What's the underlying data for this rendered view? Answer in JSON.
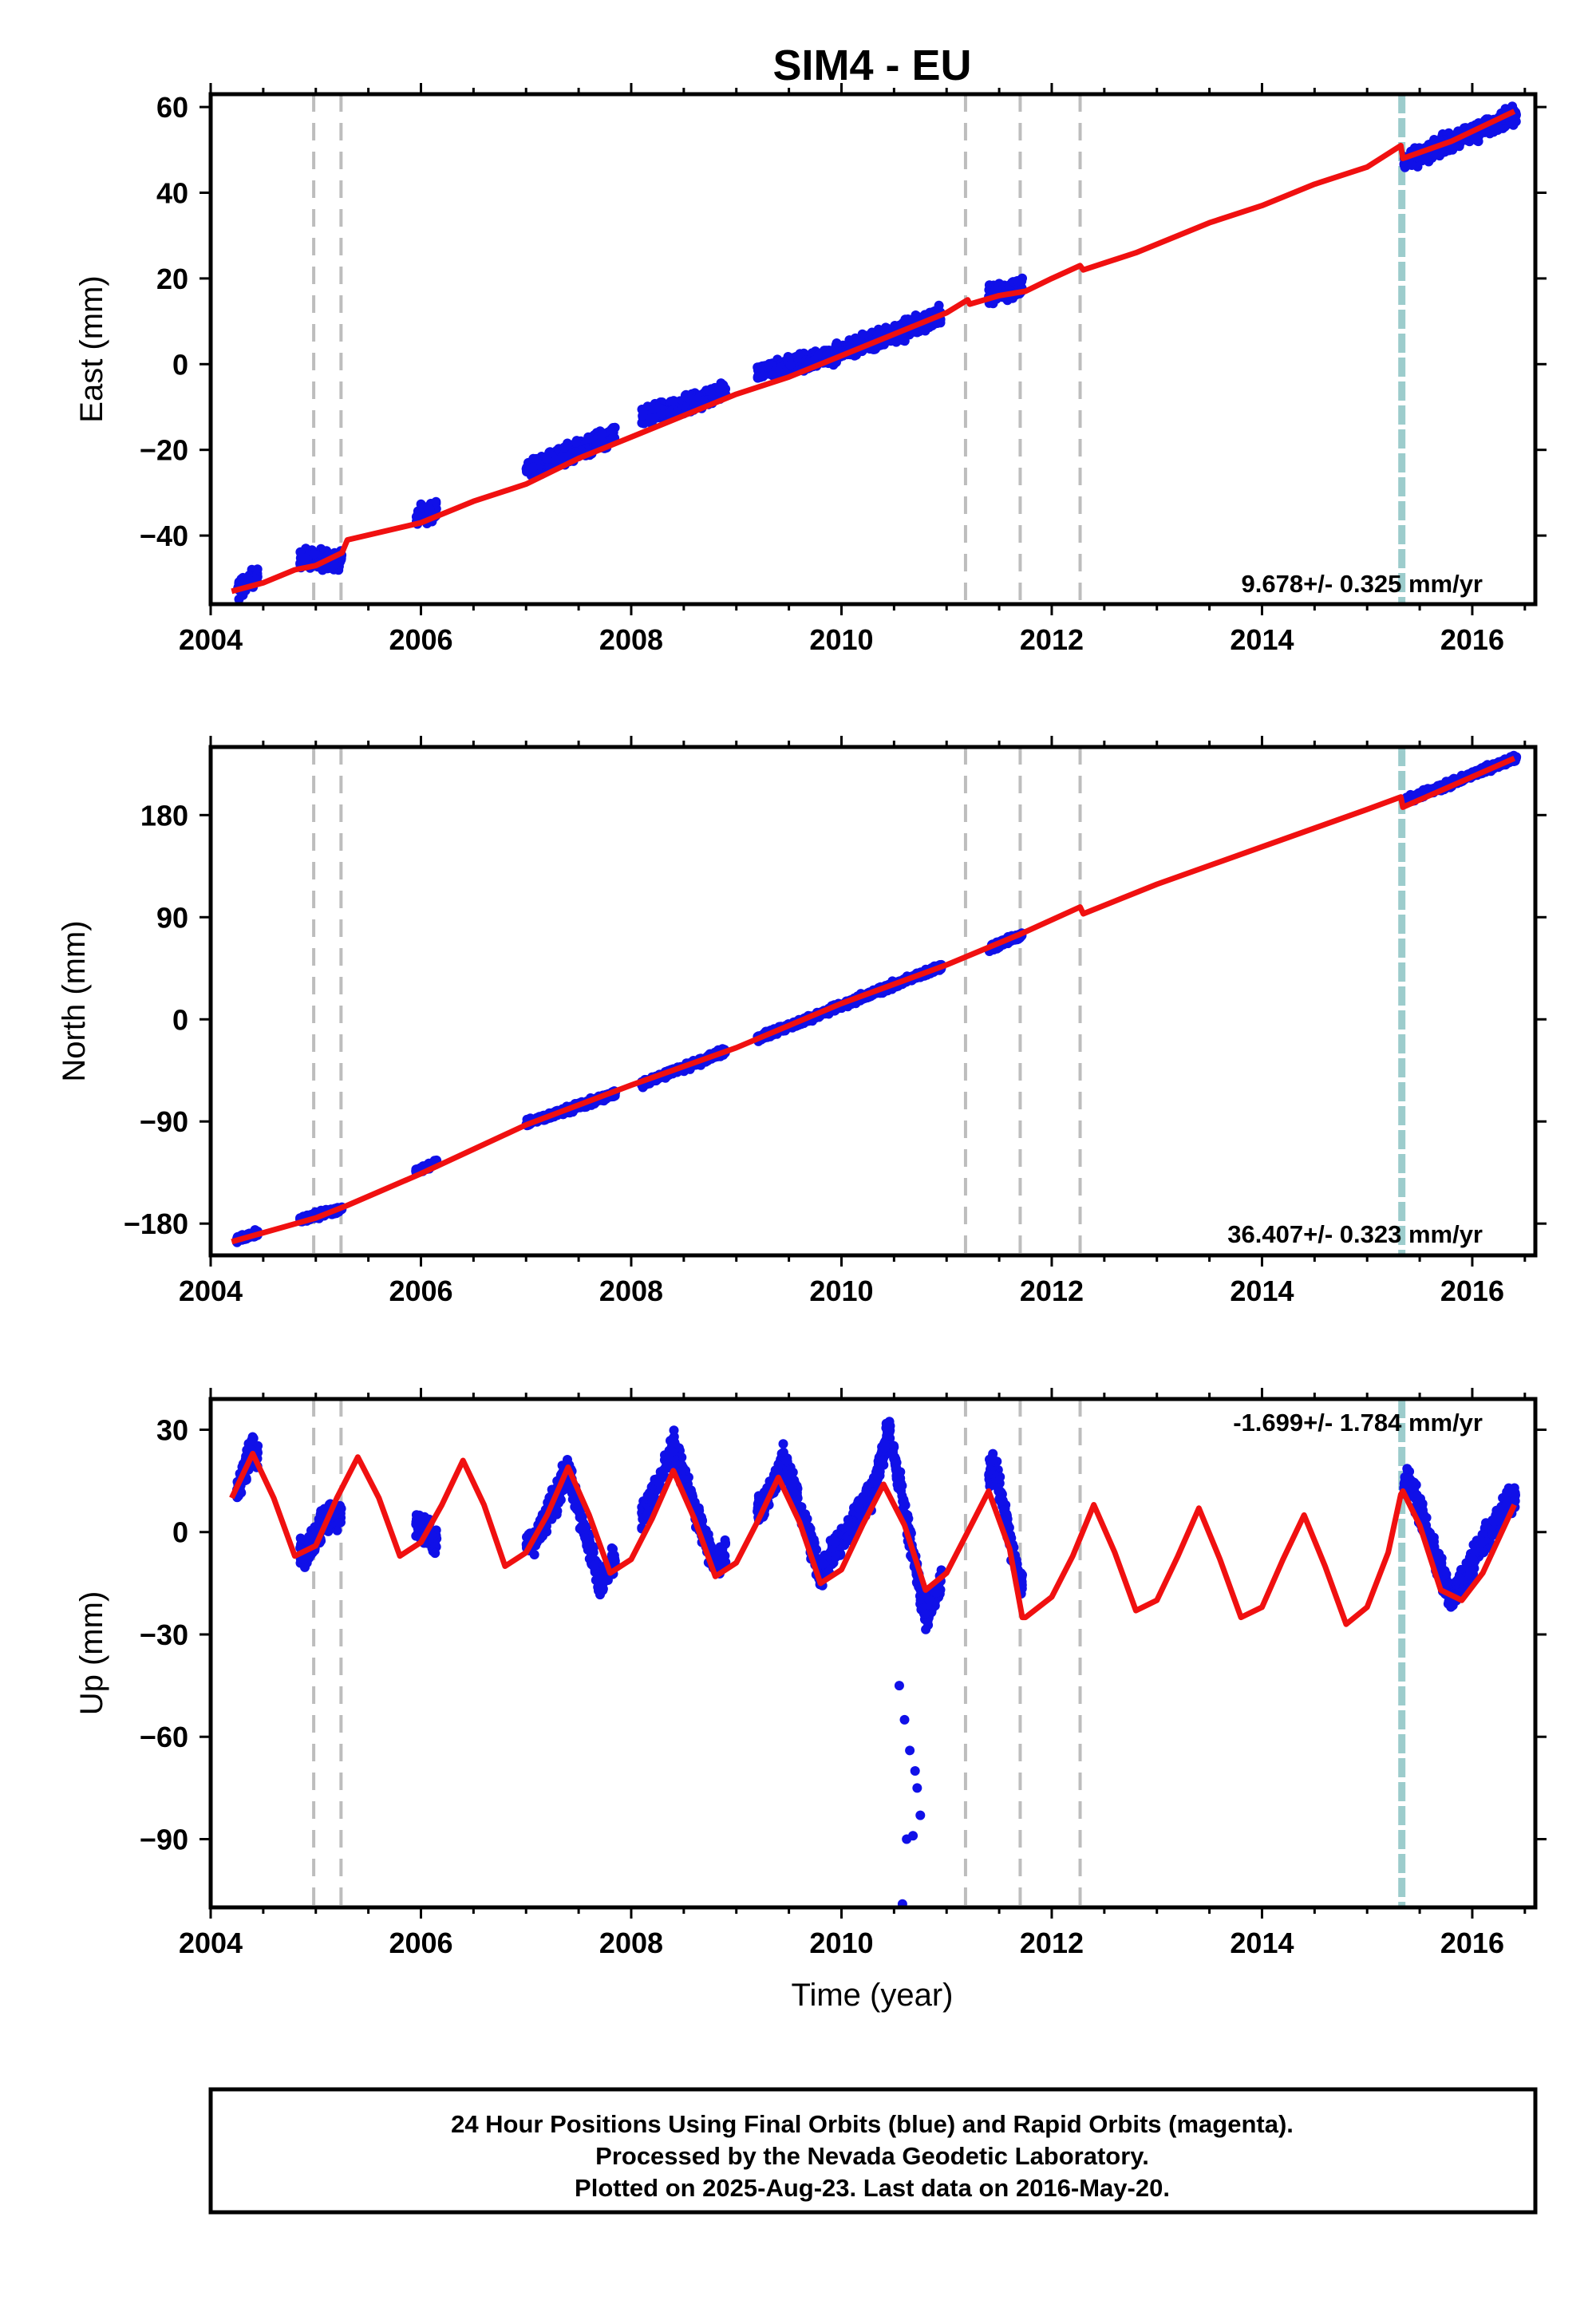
{
  "title": "SIM4 - EU",
  "colors": {
    "data_points": "#1010e8",
    "model_line": "#f01010",
    "equipment_lines": "#bdbdbd",
    "event_line": "#9ccccc",
    "frame": "#000000"
  },
  "chart_data": [
    {
      "type": "scatter",
      "component": "east",
      "ylabel": "East (mm)",
      "xlabel": "",
      "xlim": [
        2004.0,
        2016.6
      ],
      "ylim": [
        -56,
        63
      ],
      "yticks": [
        -40,
        -20,
        0,
        20,
        40,
        60
      ],
      "xticks": [
        2004,
        2006,
        2008,
        2010,
        2012,
        2014,
        2016
      ],
      "rate_text": "9.678+/- 0.325 mm/yr",
      "data_spans": [
        [
          2004.25,
          2004.45
        ],
        [
          2004.85,
          2005.25
        ],
        [
          2005.95,
          2006.15
        ],
        [
          2007.0,
          2007.85
        ],
        [
          2008.1,
          2008.9
        ],
        [
          2009.2,
          2010.05
        ],
        [
          2010.05,
          2010.95
        ],
        [
          2011.4,
          2011.72
        ],
        [
          2015.35,
          2016.42
        ]
      ],
      "series": [
        {
          "role": "points",
          "x": [
            2004.25,
            2004.4,
            2004.9,
            2005.2,
            2006.0,
            2006.15,
            2007.0,
            2007.4,
            2007.8,
            2008.1,
            2008.5,
            2008.9,
            2009.2,
            2009.6,
            2010.0,
            2010.1,
            2010.5,
            2010.9,
            2011.4,
            2011.7,
            2015.35,
            2015.8,
            2016.4
          ],
          "y": [
            -53,
            -50,
            -45,
            -46,
            -35,
            -34,
            -25,
            -21,
            -17,
            -12,
            -10,
            -6,
            -2,
            0,
            3,
            4,
            7,
            11,
            16,
            18,
            47,
            52,
            58
          ]
        },
        {
          "role": "model",
          "x": [
            2004.2,
            2004.5,
            2004.8,
            2005.0,
            2005.25,
            2005.3,
            2006.0,
            2006.5,
            2007.0,
            2007.5,
            2008.0,
            2008.5,
            2009.0,
            2009.5,
            2010.0,
            2010.5,
            2011.0,
            2011.2,
            2011.22,
            2011.5,
            2011.75,
            2012.0,
            2012.27,
            2012.3,
            2012.8,
            2013.5,
            2014.0,
            2014.5,
            2015.0,
            2015.32,
            2015.34,
            2015.8,
            2016.4
          ],
          "y": [
            -53,
            -51,
            -48,
            -47,
            -44,
            -41,
            -37,
            -32,
            -28,
            -22,
            -17,
            -12,
            -7,
            -3,
            2,
            7,
            12,
            15,
            14,
            16,
            17,
            20,
            23,
            22,
            26,
            33,
            37,
            42,
            46,
            51,
            48,
            52,
            59
          ]
        }
      ]
    },
    {
      "type": "scatter",
      "component": "north",
      "ylabel": "North (mm)",
      "xlabel": "",
      "xlim": [
        2004.0,
        2016.6
      ],
      "ylim": [
        -208,
        240
      ],
      "yticks": [
        -180,
        -90,
        0,
        90,
        180
      ],
      "xticks": [
        2004,
        2006,
        2008,
        2010,
        2012,
        2014,
        2016
      ],
      "rate_text": "36.407+/- 0.323 mm/yr",
      "data_spans": [
        [
          2004.25,
          2004.45
        ],
        [
          2004.85,
          2005.25
        ],
        [
          2005.95,
          2006.15
        ],
        [
          2007.0,
          2007.85
        ],
        [
          2008.1,
          2008.9
        ],
        [
          2009.2,
          2010.05
        ],
        [
          2010.05,
          2010.95
        ],
        [
          2011.4,
          2011.72
        ],
        [
          2015.35,
          2016.42
        ]
      ],
      "series": [
        {
          "role": "points",
          "x": [
            2004.25,
            2004.45,
            2005.0,
            2005.2,
            2006.05,
            2007.0,
            2007.8,
            2008.1,
            2008.9,
            2009.2,
            2010.0,
            2010.9,
            2011.4,
            2011.7,
            2015.35,
            2016.4
          ],
          "y": [
            -194,
            -188,
            -173,
            -168,
            -130,
            -92,
            -67,
            -57,
            -28,
            -17,
            12,
            45,
            62,
            74,
            192,
            230
          ]
        },
        {
          "role": "model",
          "x": [
            2004.2,
            2005.0,
            2005.3,
            2006.0,
            2007.0,
            2008.0,
            2009.0,
            2010.0,
            2011.0,
            2011.7,
            2012.27,
            2012.3,
            2013.0,
            2014.0,
            2015.0,
            2015.32,
            2015.34,
            2016.4
          ],
          "y": [
            -196,
            -175,
            -164,
            -136,
            -93,
            -58,
            -25,
            14,
            48,
            75,
            99,
            93,
            119,
            152,
            185,
            196,
            187,
            230
          ]
        }
      ]
    },
    {
      "type": "scatter",
      "component": "up",
      "ylabel": "Up (mm)",
      "xlabel": "Time (year)",
      "xlim": [
        2004.0,
        2016.6
      ],
      "ylim": [
        -110,
        39
      ],
      "yticks": [
        -90,
        -60,
        -30,
        0,
        30
      ],
      "xticks": [
        2004,
        2006,
        2008,
        2010,
        2012,
        2014,
        2016
      ],
      "rate_text": "-1.699+/- 1.784 mm/yr",
      "data_spans": [
        [
          2004.25,
          2004.45
        ],
        [
          2004.85,
          2005.25
        ],
        [
          2005.95,
          2006.15
        ],
        [
          2007.0,
          2007.85
        ],
        [
          2008.1,
          2008.9
        ],
        [
          2009.2,
          2010.05
        ],
        [
          2010.05,
          2010.95
        ],
        [
          2011.4,
          2011.72
        ],
        [
          2015.35,
          2016.42
        ]
      ],
      "outliers": {
        "x": [
          2010.55,
          2010.6,
          2010.65,
          2010.7,
          2010.75,
          2010.62,
          2010.68,
          2010.72,
          2010.58
        ],
        "y": [
          -45,
          -55,
          -64,
          -70,
          -83,
          -90,
          -89,
          -75,
          -109
        ]
      },
      "series": [
        {
          "role": "points",
          "x": [
            2004.25,
            2004.4,
            2004.9,
            2005.1,
            2006.0,
            2006.15,
            2007.1,
            2007.4,
            2007.7,
            2008.2,
            2008.4,
            2008.8,
            2009.3,
            2009.45,
            2009.8,
            2010.3,
            2010.45,
            2010.8,
            2011.45,
            2011.7,
            2015.4,
            2015.8,
            2016.35
          ],
          "y": [
            12,
            25,
            -8,
            5,
            2,
            -3,
            -2,
            18,
            -15,
            10,
            25,
            -10,
            10,
            22,
            -12,
            12,
            30,
            -25,
            20,
            -15,
            15,
            -20,
            10
          ]
        },
        {
          "role": "model",
          "x": [
            2004.2,
            2004.4,
            2004.6,
            2004.8,
            2005.0,
            2005.2,
            2005.4,
            2005.6,
            2005.8,
            2006.0,
            2006.2,
            2006.4,
            2006.6,
            2006.8,
            2007.0,
            2007.2,
            2007.4,
            2007.6,
            2007.8,
            2008.0,
            2008.2,
            2008.4,
            2008.6,
            2008.8,
            2009.0,
            2009.2,
            2009.4,
            2009.6,
            2009.8,
            2010.0,
            2010.2,
            2010.4,
            2010.6,
            2010.8,
            2011.0,
            2011.2,
            2011.4,
            2011.6,
            2011.72,
            2011.75,
            2012.0,
            2012.2,
            2012.4,
            2012.6,
            2012.8,
            2013.0,
            2013.2,
            2013.4,
            2013.6,
            2013.8,
            2014.0,
            2014.2,
            2014.4,
            2014.6,
            2014.8,
            2015.0,
            2015.2,
            2015.32,
            2015.34,
            2015.5,
            2015.7,
            2015.9,
            2016.1,
            2016.4
          ],
          "y": [
            10,
            23,
            10,
            -7,
            -4,
            10,
            22,
            10,
            -7,
            -3,
            8,
            21,
            8,
            -10,
            -6,
            5,
            19,
            5,
            -12,
            -8,
            4,
            18,
            4,
            -13,
            -9,
            3,
            16,
            3,
            -15,
            -11,
            2,
            14,
            2,
            -17,
            -12,
            0,
            12,
            -5,
            -25,
            -25,
            -19,
            -7,
            8,
            -6,
            -23,
            -20,
            -7,
            7,
            -8,
            -25,
            -22,
            -8,
            5,
            -10,
            -27,
            -22,
            -6,
            11,
            12,
            2,
            -17,
            -20,
            -12,
            8
          ]
        }
      ]
    }
  ],
  "equipment_change_years": [
    2004.98,
    2005.24,
    2011.18,
    2011.7,
    2012.27
  ],
  "event_years": [
    2015.33
  ],
  "footer": {
    "line1": "24 Hour Positions Using Final Orbits (blue) and Rapid Orbits (magenta).",
    "line2": "Processed by the Nevada Geodetic Laboratory.",
    "line3": "Plotted on 2025-Aug-23. Last data on 2016-May-20."
  }
}
